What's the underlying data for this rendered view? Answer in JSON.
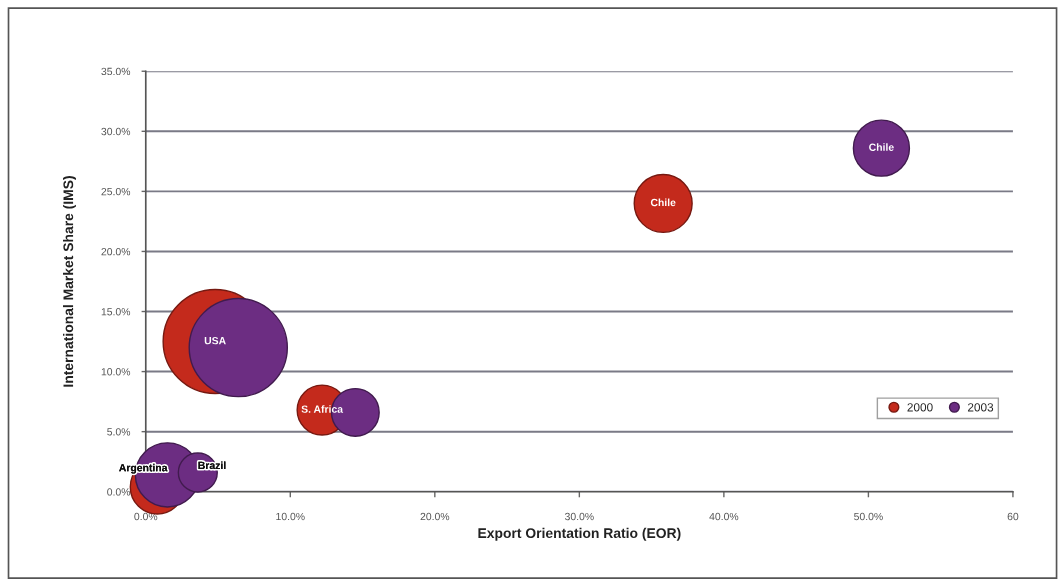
{
  "chart_data": {
    "type": "bubble",
    "xlabel": "Export Orientation Ratio (EOR)",
    "ylabel": "International Market Share (IMS)",
    "xlim": [
      0,
      60
    ],
    "xticks": [
      {
        "value": 0,
        "label": "0.0%"
      },
      {
        "value": 10,
        "label": "10.0%"
      },
      {
        "value": 20,
        "label": "20.0%"
      },
      {
        "value": 30,
        "label": "30.0%"
      },
      {
        "value": 40,
        "label": "40.0%"
      },
      {
        "value": 50,
        "label": "50.0%"
      },
      {
        "value": 60,
        "label": "60"
      }
    ],
    "ylim": [
      0,
      35
    ],
    "yticks": [
      {
        "value": 0,
        "label": "0.0%"
      },
      {
        "value": 5,
        "label": "5.0%"
      },
      {
        "value": 10,
        "label": "10.0%"
      },
      {
        "value": 15,
        "label": "15.0%"
      },
      {
        "value": 20,
        "label": "20.0%"
      },
      {
        "value": 25,
        "label": "25.0%"
      },
      {
        "value": 30,
        "label": "30.0%"
      },
      {
        "value": 35,
        "label": "35.0%"
      }
    ],
    "grid": "y",
    "legend": "bottom right",
    "marker": "circle",
    "annotations": [
      {
        "text": "Argentina",
        "x": 1.5,
        "y": 1.4
      },
      {
        "text": "Brazil",
        "x": 3.6,
        "y": 1.6
      }
    ],
    "series": [
      {
        "name": "2000",
        "color": "#c42a1c",
        "x": [
          0.8,
          35.8,
          12.2,
          4.8
        ],
        "values": [
          0.4,
          24.0,
          6.8,
          12.5
        ],
        "sizes": [
          0.27,
          0.31,
          0.23,
          1
        ],
        "value_labels": [
          null,
          "Chile",
          "S. Africa",
          "USA"
        ]
      },
      {
        "name": "2003",
        "color": "#6c2d82",
        "x": [
          1.5,
          3.6,
          50.9,
          14.5,
          6.4
        ],
        "values": [
          1.4,
          1.6,
          28.6,
          6.6,
          12.0
        ],
        "sizes": [
          0.38,
          0.14,
          0.29,
          0.21,
          0.89
        ],
        "value_labels": [
          null,
          null,
          "Chile",
          null,
          null
        ]
      }
    ]
  }
}
